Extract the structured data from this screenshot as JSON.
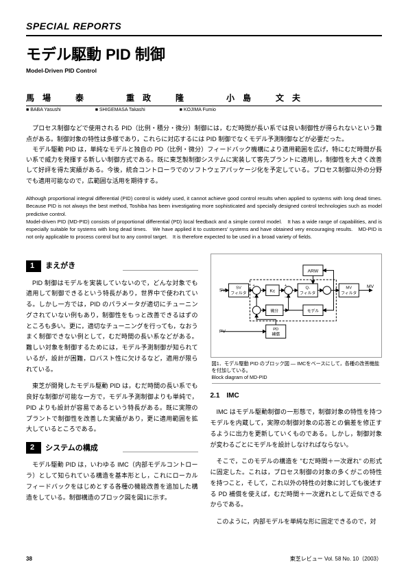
{
  "header": {
    "label": "SPECIAL REPORTS"
  },
  "title": {
    "jp": "モデル駆動 PID 制御",
    "en": "Model-Driven PID Control"
  },
  "authors": {
    "jp": [
      "馬場　泰",
      "重政　隆",
      "小島　文夫"
    ],
    "en": [
      "BABA Yasushi",
      "SHIGEMASA Takashi",
      "KOJIMA Fumio"
    ]
  },
  "abstract": {
    "jp": "　プロセス制御などで使用される PID（比例・積分・微分）制御には，むだ時間が長い系では良い制御性が得られないという難点がある。制御対象の特性は多様であり，これらに対応するには PID 制御でなくモデル予測制御などが必要だった。\n　モデル駆動 PID は，単純なモデルと独自の PD（比例・微分）フィードバック機構により適用範囲を広げ，特にむだ時間が長い系で威力を発揮する新しい制御方式である。既に東芝製制御システムに実装して客先プラントに適用し，制御性を大きく改善して好評を得た実績がある。今後，統合コントローラでのソフトウェアパッケージ化を予定している。プロセス制御以外の分野でも適用可能なので，広範囲な活用を期待する。",
    "en": "Although proportional integral differential (PID) control is widely used, it cannot achieve good control results when applied to systems with long dead times.　Because PID is not always the best method, Toshiba has been investigating more sophisticated and specially designed control technologies such as model predictive control.\nModel-driven PID (MD-PID) consists of proportional differential (PD) local feedback and a simple control model.　It has a wide range of capabilities, and is especially suitable for systems with long dead times.　We have applied it to customers' systems and have obtained very encouraging results.　MD-PID is not only applicable to process control but to any control target.　It is therefore expected to be used in a broad variety of fields."
  },
  "left": {
    "sec1": {
      "num": "1",
      "title": "まえがき"
    },
    "p1": "PID 制御はモデルを実装していないので，どんな対象でも適用して制御できるという特長があり，世界中で使われている。しかし一方では，PID のパラメータが適切にチューニングされていない例もあり，制御性をもっと改善できるはずのところも多い。更に，適切なチューニングを行っても，なおうまく制御できない例として，むだ時間の長い系などがある。難しい対象を制御するためには，モデル予測制御が知られているが，設計が困難，ロバスト性に欠けるなど，適用が限られている。",
    "p2": "東芝が開発したモデル駆動 PID は，むだ時間の長い系でも良好な制御が可能な一方で，モデル予測制御よりも単純で，PID よりも設計が容易であるという特長がある。既に実際のプラントで制御性を改善した実績があり，更に適用範囲を拡大しているところである。",
    "sec2": {
      "num": "2",
      "title": "システムの構成"
    },
    "p3": "モデル駆動 PID は，いわゆる IMC（内部モデルコントローラ）として知られている構造を基本形とし，これにローカルフィードバックをはじめとする各種の機能改善を追加した構造をしている。制御構造のブロック図を図1に示す。"
  },
  "right": {
    "figure": {
      "blocks": {
        "svfilter": "SV\nフィルタ",
        "kc": "Kc",
        "qfilter": "Q-\nフィルタ",
        "mvfilter": "MV\nフィルタ",
        "arw": "ARW",
        "diff": "微分",
        "model": "モデル",
        "pdcomp": "PD\n補償"
      },
      "signals": {
        "sv": "SV",
        "pv": "PV",
        "mv": "MV"
      },
      "caption_jp": "図1．モデル駆動 PID のブロック図 ― IMCをベースにして，各種の改善機能を付加している。",
      "caption_en": "Block diagram of MD-PID"
    },
    "sub": "2.1　IMC",
    "p1": "IMC はモデル駆動制御の一形態で，制御対象の特性を持つモデルを内蔵して，実際の制御対象の応答との偏差を修正するように出力を更新していくものである。しかし，制御対象が変わるごとにモデルを設計しなければならない。",
    "p2": "そこで，このモデルの構造を \"むだ時間＋一次遅れ\" の形式に固定した。これは，プロセス制御の対象の多くがこの特性を持つこと，そして，これ以外の特性の対象に対しても後述する PD 補償を使えば，むだ時間＋一次遅れとして近似できるからである。",
    "p3": "このように，内部モデルを単純な形に固定できるので，対"
  },
  "footer": {
    "page": "38",
    "journal": "東芝レビュー Vol. 58 No. 10（2003）"
  },
  "colors": {
    "text": "#000000",
    "rule": "#999999",
    "bg": "#ffffff"
  }
}
